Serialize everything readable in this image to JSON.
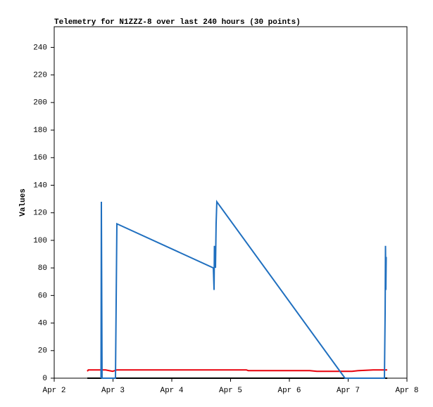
{
  "chart_data": {
    "type": "line",
    "title": "Telemetry for N1ZZZ-8 over last 240 hours (30 points)",
    "y_label": "Values",
    "xlim": [
      0,
      6
    ],
    "xticks": [
      {
        "value": 0,
        "label": "Apr 2"
      },
      {
        "value": 1,
        "label": "Apr 3"
      },
      {
        "value": 2,
        "label": "Apr 4"
      },
      {
        "value": 3,
        "label": "Apr 5"
      },
      {
        "value": 4,
        "label": "Apr 6"
      },
      {
        "value": 5,
        "label": "Apr 7"
      },
      {
        "value": 6,
        "label": "Apr 8"
      }
    ],
    "ylim": [
      0,
      255
    ],
    "yticks": [
      0,
      20,
      40,
      60,
      80,
      100,
      120,
      140,
      160,
      180,
      200,
      220,
      240
    ],
    "series": [
      {
        "color": "#000000",
        "x": [
          0.563,
          5.665
        ],
        "values": [
          0,
          0
        ]
      },
      {
        "color": "#e8000b",
        "x": [
          0.563,
          0.58,
          0.874,
          0.994,
          1.066,
          3.269,
          3.3,
          4.347,
          4.467,
          5.066,
          5.18,
          5.425,
          5.665
        ],
        "values": [
          5,
          6,
          6,
          5,
          6,
          6,
          5.5,
          5.5,
          5,
          5,
          5.5,
          6,
          6
        ]
      },
      {
        "color": "#1f6fbf",
        "x": [
          0.796,
          0.802,
          0.808,
          0.814,
          1.042,
          1.054,
          1.066,
          2.707,
          2.719,
          2.725,
          2.743,
          2.754,
          2.766,
          4.946,
          5.617,
          5.629,
          5.635,
          5.641,
          5.647
        ],
        "values": [
          0,
          128,
          64,
          0,
          0,
          56,
          112,
          80,
          64,
          96,
          80,
          112,
          128,
          0,
          0,
          48,
          96,
          64,
          88
        ]
      }
    ]
  }
}
